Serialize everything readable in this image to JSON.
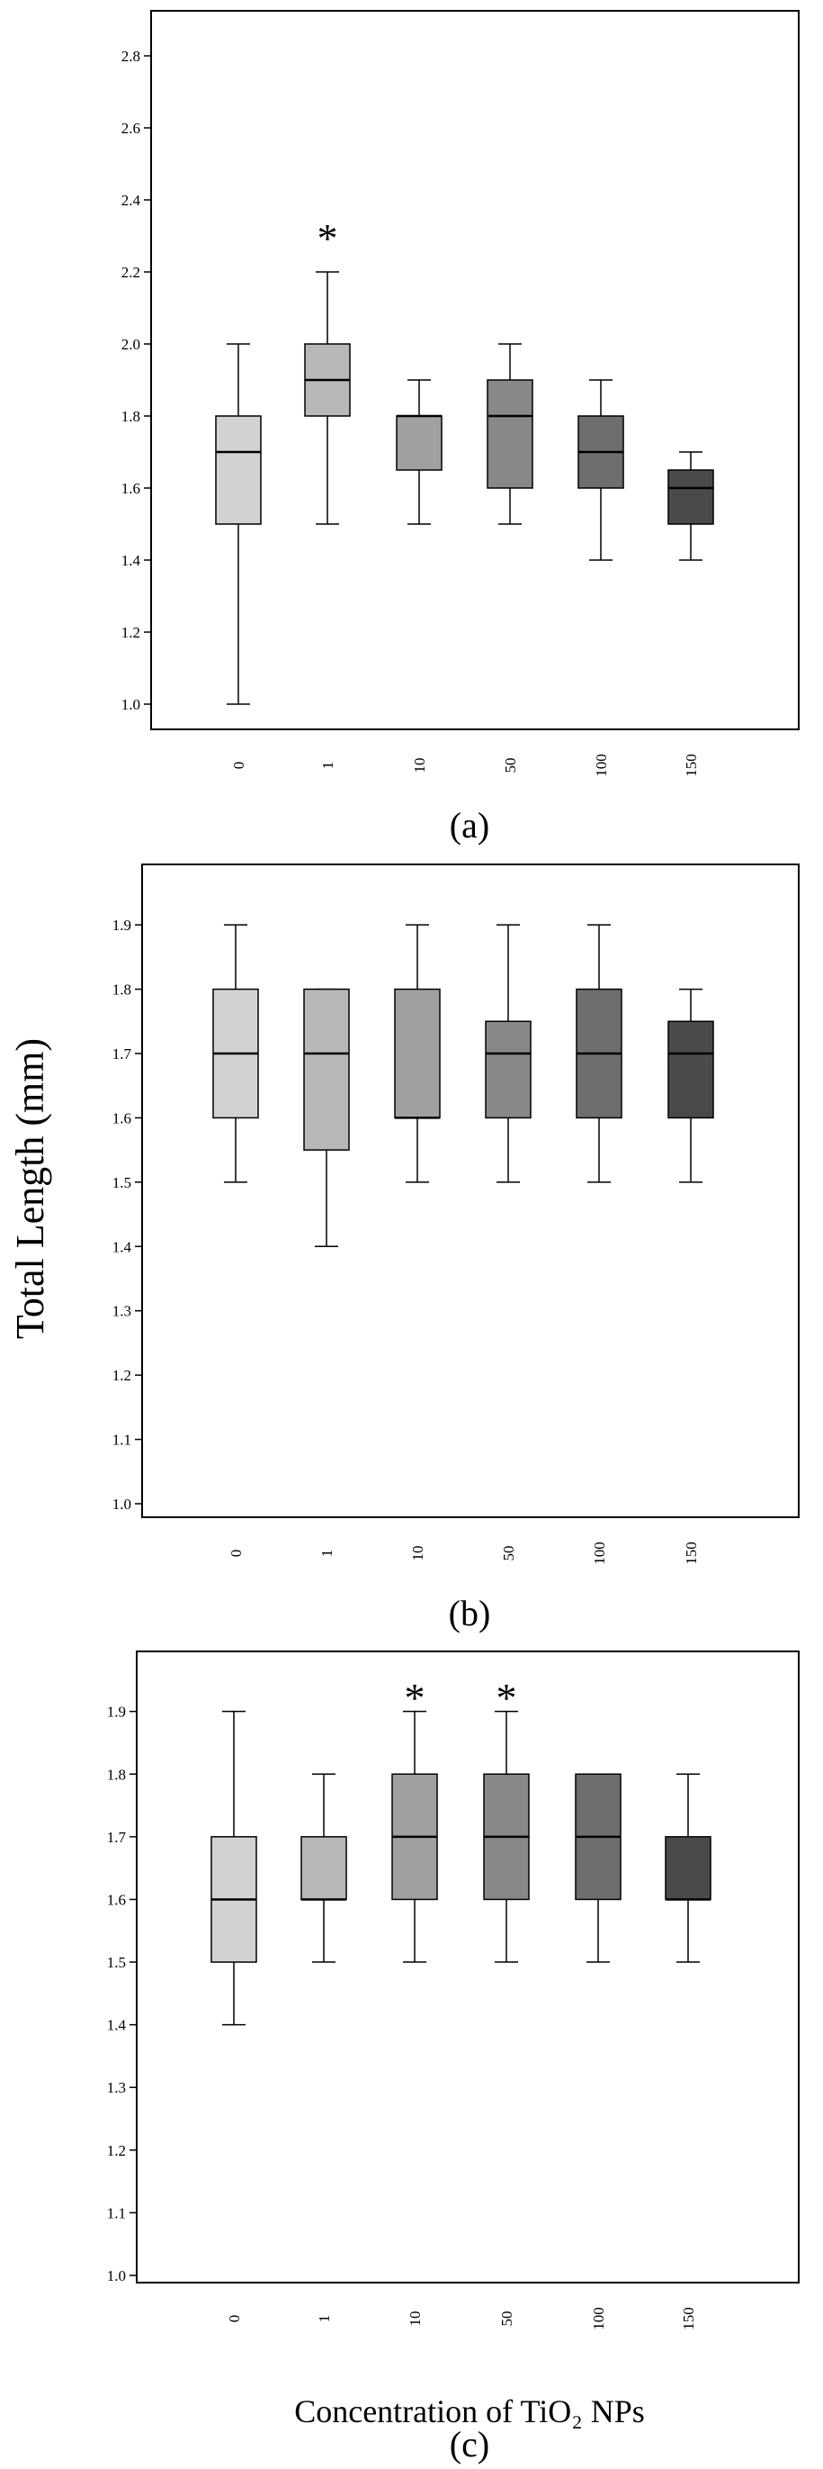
{
  "figure": {
    "ylabel": "Total Length (mm)",
    "xlabel": "Concentration of TiO₂ NPs"
  },
  "chart_data": [
    {
      "type": "box",
      "panel_label": "(a)",
      "categories": [
        "0",
        "1",
        "10",
        "50",
        "100",
        "150"
      ],
      "ylim": [
        1.0,
        2.9
      ],
      "yticks": [
        "1.0",
        "1.2",
        "1.4",
        "1.6",
        "1.8",
        "2.0",
        "2.2",
        "2.4",
        "2.6",
        "2.8"
      ],
      "significance": [
        {
          "category": "1",
          "symbol": "*"
        }
      ],
      "boxes": [
        {
          "min": 1.0,
          "q1": 1.5,
          "median": 1.7,
          "q3": 1.8,
          "max": 2.0,
          "fill": "#d2d2d2"
        },
        {
          "min": 1.5,
          "q1": 1.8,
          "median": 1.9,
          "q3": 2.0,
          "max": 2.2,
          "fill": "#b8b8b8"
        },
        {
          "min": 1.5,
          "q1": 1.65,
          "median": 1.8,
          "q3": 1.8,
          "max": 1.9,
          "fill": "#a0a0a0"
        },
        {
          "min": 1.5,
          "q1": 1.6,
          "median": 1.8,
          "q3": 1.9,
          "max": 2.0,
          "fill": "#888888"
        },
        {
          "min": 1.4,
          "q1": 1.6,
          "median": 1.7,
          "q3": 1.8,
          "max": 1.9,
          "fill": "#6e6e6e"
        },
        {
          "min": 1.4,
          "q1": 1.5,
          "median": 1.6,
          "q3": 1.65,
          "max": 1.7,
          "fill": "#4a4a4a"
        }
      ]
    },
    {
      "type": "box",
      "panel_label": "(b)",
      "categories": [
        "0",
        "1",
        "10",
        "50",
        "100",
        "150"
      ],
      "ylim": [
        1.0,
        1.98
      ],
      "yticks": [
        "1.0",
        "1.1",
        "1.2",
        "1.3",
        "1.4",
        "1.5",
        "1.6",
        "1.7",
        "1.8",
        "1.9"
      ],
      "significance": [],
      "boxes": [
        {
          "min": 1.5,
          "q1": 1.6,
          "median": 1.7,
          "q3": 1.8,
          "max": 1.9,
          "fill": "#d2d2d2"
        },
        {
          "min": 1.4,
          "q1": 1.55,
          "median": 1.7,
          "q3": 1.8,
          "max": 1.8,
          "fill": "#b8b8b8"
        },
        {
          "min": 1.5,
          "q1": 1.6,
          "median": 1.6,
          "q3": 1.8,
          "max": 1.9,
          "fill": "#a0a0a0"
        },
        {
          "min": 1.5,
          "q1": 1.6,
          "median": 1.7,
          "q3": 1.75,
          "max": 1.9,
          "fill": "#888888"
        },
        {
          "min": 1.5,
          "q1": 1.6,
          "median": 1.7,
          "q3": 1.8,
          "max": 1.9,
          "fill": "#6e6e6e"
        },
        {
          "min": 1.5,
          "q1": 1.6,
          "median": 1.7,
          "q3": 1.75,
          "max": 1.8,
          "fill": "#4a4a4a"
        }
      ]
    },
    {
      "type": "box",
      "panel_label": "(c)",
      "categories": [
        "0",
        "1",
        "10",
        "50",
        "100",
        "150"
      ],
      "ylim": [
        1.0,
        1.98
      ],
      "yticks": [
        "1.0",
        "1.1",
        "1.2",
        "1.3",
        "1.4",
        "1.5",
        "1.6",
        "1.7",
        "1.8",
        "1.9"
      ],
      "significance": [
        {
          "category": "10",
          "symbol": "*"
        },
        {
          "category": "50",
          "symbol": "*"
        }
      ],
      "boxes": [
        {
          "min": 1.4,
          "q1": 1.5,
          "median": 1.6,
          "q3": 1.7,
          "max": 1.9,
          "fill": "#d2d2d2"
        },
        {
          "min": 1.5,
          "q1": 1.6,
          "median": 1.6,
          "q3": 1.7,
          "max": 1.8,
          "fill": "#b8b8b8"
        },
        {
          "min": 1.5,
          "q1": 1.6,
          "median": 1.7,
          "q3": 1.8,
          "max": 1.9,
          "fill": "#a0a0a0"
        },
        {
          "min": 1.5,
          "q1": 1.6,
          "median": 1.7,
          "q3": 1.8,
          "max": 1.9,
          "fill": "#888888"
        },
        {
          "min": 1.5,
          "q1": 1.6,
          "median": 1.7,
          "q3": 1.8,
          "max": 1.8,
          "fill": "#6e6e6e"
        },
        {
          "min": 1.5,
          "q1": 1.6,
          "median": 1.6,
          "q3": 1.7,
          "max": 1.8,
          "fill": "#4a4a4a"
        }
      ]
    }
  ]
}
